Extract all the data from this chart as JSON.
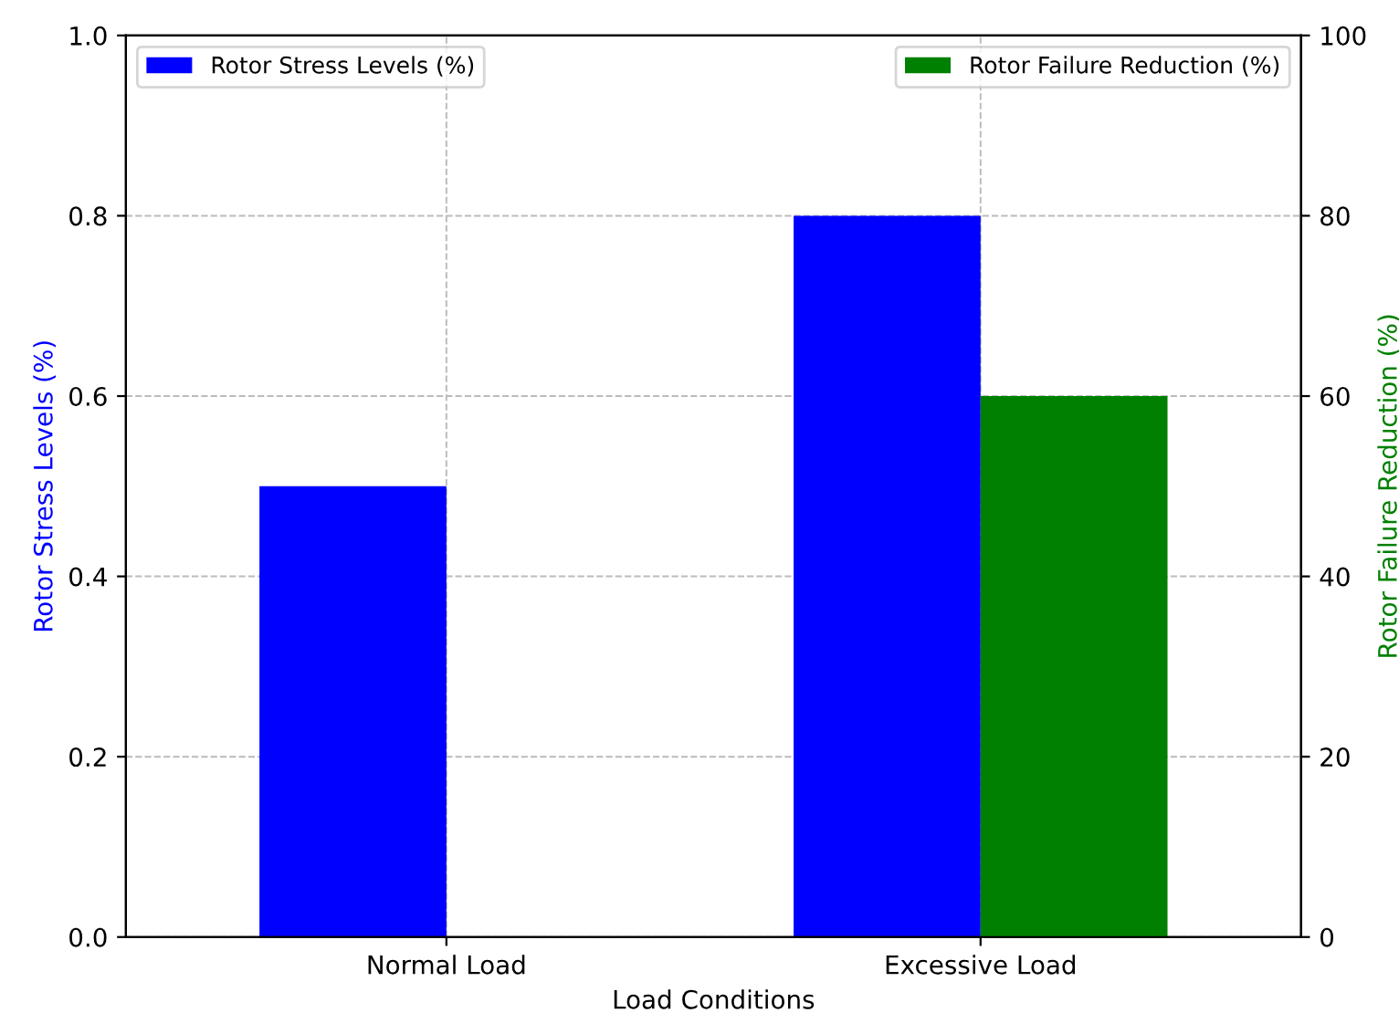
{
  "chart_data": {
    "type": "bar",
    "xlabel": "Load Conditions",
    "ylabel": "Rotor Stress Levels (%)",
    "y2label": "Rotor Failure Reduction (%)",
    "categories": [
      "Normal Load",
      "Excessive Load"
    ],
    "series": [
      {
        "name": "Rotor Stress Levels (%)",
        "color": "#0000ff",
        "values": [
          0.5,
          0.8
        ]
      },
      {
        "name": "Rotor Failure Reduction (%)",
        "color": "#008000",
        "values": [
          0,
          60
        ],
        "axis": "y2"
      }
    ],
    "ylim": [
      0,
      1
    ],
    "yticks": [
      {
        "value": 0,
        "label": "0.0"
      },
      0.2,
      0.4,
      0.6,
      0.8,
      {
        "value": 1,
        "label": "1.0"
      }
    ],
    "y2lim": [
      0,
      100
    ],
    "y2ticks": [
      0,
      20,
      40,
      60,
      80,
      100
    ],
    "grid": true,
    "legend": "top"
  }
}
